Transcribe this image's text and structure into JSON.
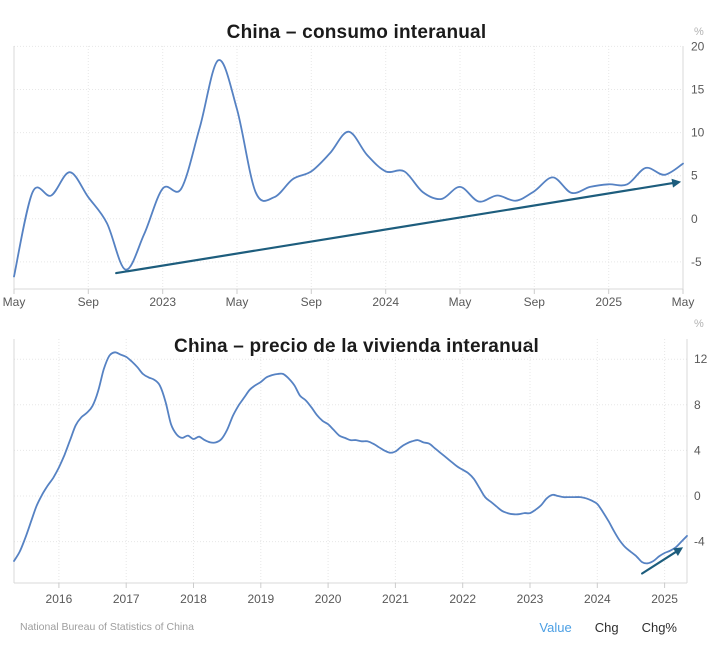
{
  "chart_data": [
    {
      "id": "consumo-interanual-chart",
      "type": "line",
      "title": "China – consumo interanual",
      "unit": "%",
      "x_period": "monthly",
      "x_start": "2022-05",
      "x_end": "2025-05",
      "xlim": [
        0,
        36
      ],
      "ylim": [
        -8.15,
        20.05
      ],
      "y_ticks": [
        -5,
        0,
        5,
        10,
        15,
        20
      ],
      "x_tick_labels": [
        "May",
        "Sep",
        "2023",
        "May",
        "Sep",
        "2024",
        "May",
        "Sep",
        "2025",
        "May"
      ],
      "x_tick_positions": [
        0,
        4,
        8,
        12,
        16,
        20,
        24,
        28,
        32,
        36
      ],
      "values": [
        -6.7,
        3.1,
        2.7,
        5.4,
        2.5,
        -0.5,
        -5.9,
        -1.8,
        3.5,
        3.5,
        10.6,
        18.4,
        12.7,
        3.1,
        2.5,
        4.6,
        5.5,
        7.6,
        10.1,
        7.4,
        5.5,
        5.5,
        3.1,
        2.3,
        3.7,
        2.0,
        2.7,
        2.1,
        3.2,
        4.8,
        3.0,
        3.7,
        4.0,
        4.0,
        5.9,
        5.1,
        6.4
      ],
      "line_color": "#5682c3",
      "grid": true,
      "trend_arrow": {
        "x1": 5.5,
        "y1": -6.3,
        "x2": 35.9,
        "y2": 4.3,
        "color": "#1d5d7d"
      }
    },
    {
      "id": "precio-vivienda-chart",
      "type": "line",
      "title": "China – precio de la vivienda interanual",
      "unit": "%",
      "x_period": "monthly",
      "x_start": "2015-05",
      "x_end": "2025-05",
      "xlim": [
        0,
        120
      ],
      "ylim": [
        -7.63,
        13.77
      ],
      "y_ticks": [
        -4,
        0,
        4,
        8,
        12
      ],
      "x_tick_labels": [
        "2016",
        "2017",
        "2018",
        "2019",
        "2020",
        "2021",
        "2022",
        "2023",
        "2024",
        "2025"
      ],
      "x_tick_positions": [
        8,
        20,
        32,
        44,
        56,
        68,
        80,
        92,
        104,
        116
      ],
      "values": [
        -5.7,
        -4.9,
        -3.7,
        -2.3,
        -0.9,
        0.1,
        0.9,
        1.6,
        2.5,
        3.6,
        4.9,
        6.2,
        6.9,
        7.3,
        7.9,
        9.2,
        11.1,
        12.3,
        12.6,
        12.4,
        12.2,
        11.8,
        11.3,
        10.7,
        10.4,
        10.2,
        9.7,
        8.3,
        6.3,
        5.4,
        5.1,
        5.3,
        5.0,
        5.2,
        4.9,
        4.7,
        4.7,
        5.0,
        5.8,
        7.0,
        7.9,
        8.6,
        9.3,
        9.7,
        10.0,
        10.4,
        10.6,
        10.7,
        10.7,
        10.3,
        9.7,
        8.8,
        8.4,
        7.8,
        7.1,
        6.6,
        6.3,
        5.8,
        5.3,
        5.1,
        4.9,
        4.9,
        4.8,
        4.8,
        4.6,
        4.3,
        4.0,
        3.8,
        3.9,
        4.3,
        4.6,
        4.8,
        4.9,
        4.7,
        4.6,
        4.2,
        3.8,
        3.4,
        3.0,
        2.6,
        2.3,
        2.0,
        1.5,
        0.7,
        -0.1,
        -0.5,
        -0.9,
        -1.3,
        -1.5,
        -1.6,
        -1.6,
        -1.5,
        -1.5,
        -1.2,
        -0.8,
        -0.2,
        0.1,
        0.0,
        -0.1,
        -0.1,
        -0.1,
        -0.1,
        -0.2,
        -0.4,
        -0.7,
        -1.4,
        -2.2,
        -3.1,
        -3.9,
        -4.5,
        -4.9,
        -5.3,
        -5.8,
        -5.9,
        -5.7,
        -5.3,
        -5.0,
        -4.8,
        -4.5,
        -4.0,
        -3.5
      ],
      "line_color": "#5682c3",
      "grid": true,
      "trend_arrow": {
        "x1": 112,
        "y1": -6.8,
        "x2": 119.3,
        "y2": -4.5,
        "color": "#1d5d7d"
      }
    }
  ],
  "footer": {
    "source": "National Bureau of Statistics of China",
    "buttons": [
      {
        "label": "Value",
        "active": true
      },
      {
        "label": "Chg",
        "active": false
      },
      {
        "label": "Chg%",
        "active": false
      }
    ],
    "active_color": "#4b9fe4",
    "inactive_color": "#2f2f2f"
  }
}
